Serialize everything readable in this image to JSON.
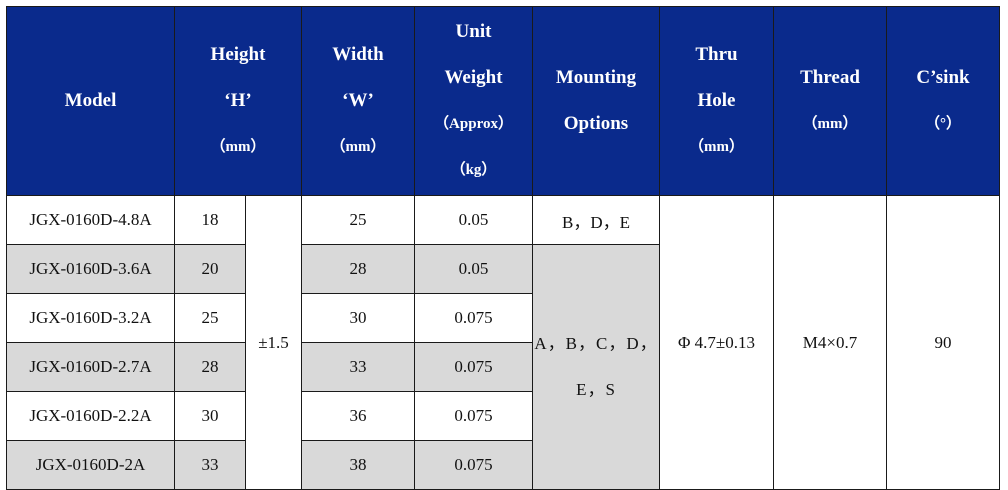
{
  "headers": {
    "model": "Model",
    "height": [
      "Height",
      "‘H’",
      "（mm）"
    ],
    "width": [
      "Width",
      "‘W’",
      "（mm）"
    ],
    "unit_weight": [
      "Unit",
      "Weight",
      "（Approx）",
      "（kg）"
    ],
    "mounting": [
      "Mounting",
      "Options"
    ],
    "thru_hole": [
      "Thru",
      "Hole",
      "（mm）"
    ],
    "thread": [
      "Thread",
      "（mm）"
    ],
    "csink": [
      "C’sink",
      "（°）"
    ]
  },
  "rows": [
    {
      "model": "JGX-0160D-4.8A",
      "height": "18",
      "width": "25",
      "weight": "0.05"
    },
    {
      "model": "JGX-0160D-3.6A",
      "height": "20",
      "width": "28",
      "weight": "0.05"
    },
    {
      "model": "JGX-0160D-3.2A",
      "height": "25",
      "width": "30",
      "weight": "0.075"
    },
    {
      "model": "JGX-0160D-2.7A",
      "height": "28",
      "width": "33",
      "weight": "0.075"
    },
    {
      "model": "JGX-0160D-2.2A",
      "height": "30",
      "width": "36",
      "weight": "0.075"
    },
    {
      "model": "JGX-0160D-2A",
      "height": "33",
      "width": "38",
      "weight": "0.075"
    }
  ],
  "shared": {
    "height_tolerance": "±1.5",
    "mounting_first": "B，D，E",
    "mounting_rest": [
      "A，B，C，D，",
      "E，S"
    ],
    "thru_hole": "Φ 4.7±0.13",
    "thread": "M4×0.7",
    "csink": "90"
  },
  "colors": {
    "header_bg": "#0a2a8c",
    "header_text": "#ffffff",
    "shaded_row": "#d9d9d9",
    "border": "#1a1a1a"
  }
}
